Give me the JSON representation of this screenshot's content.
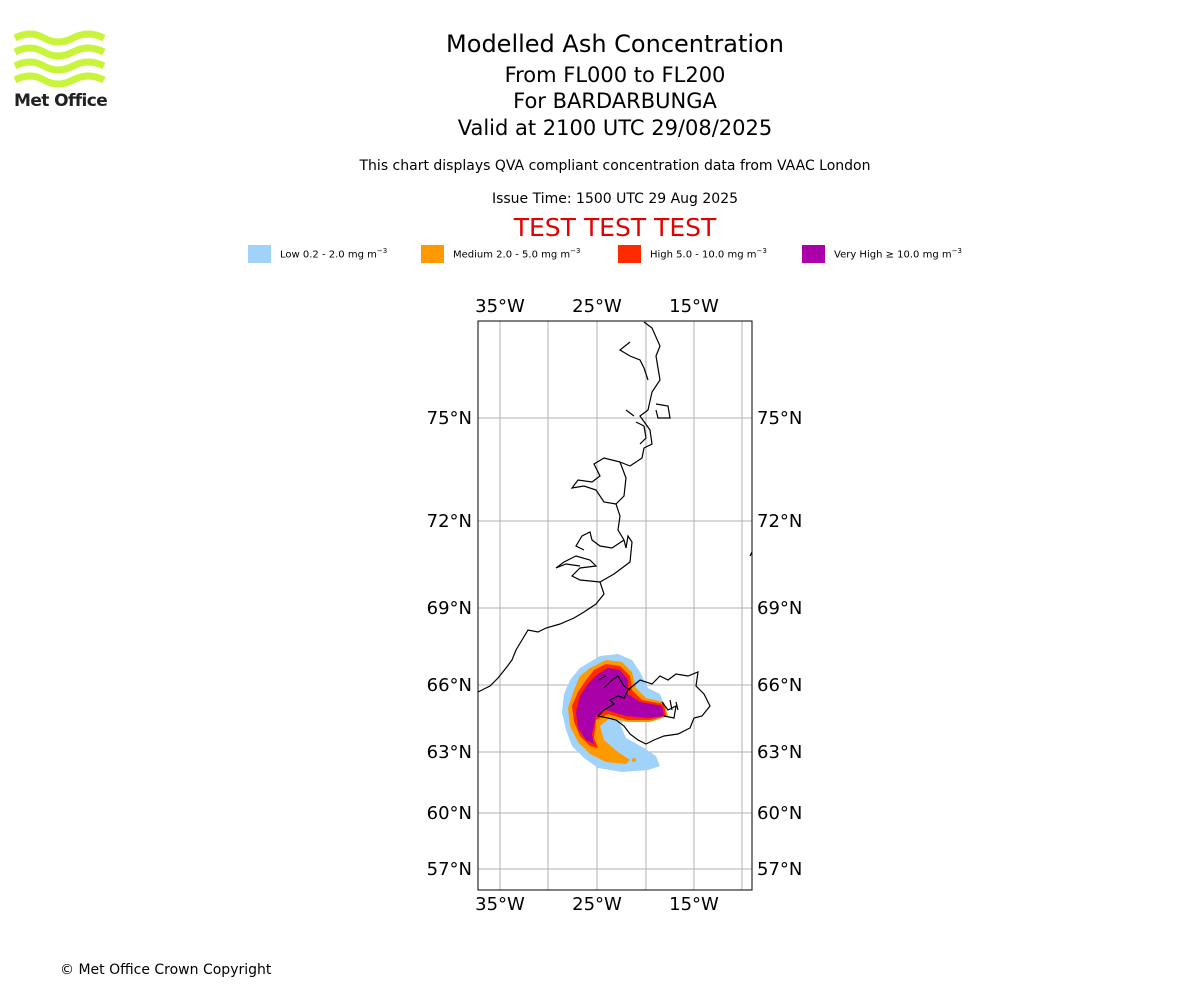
{
  "header": {
    "title": "Modelled Ash Concentration",
    "subtitle_levels": "From FL000 to FL200",
    "subtitle_volcano": "For BARDARBUNGA",
    "subtitle_valid": "Valid at 2100 UTC 29/08/2025",
    "qva_note": "This chart displays QVA compliant concentration data from VAAC London",
    "issue_time": "Issue Time: 1500 UTC 29 Aug 2025",
    "test_banner": "TEST TEST TEST"
  },
  "logo": {
    "text": "Met Office",
    "color": "#c8f53c"
  },
  "legend": [
    {
      "label": "Low 0.2 - 2.0 mg m",
      "unit_exp": "−3",
      "color": "#a0d2fa"
    },
    {
      "label": "Medium 2.0 - 5.0 mg m",
      "unit_exp": "−3",
      "color": "#ff9900"
    },
    {
      "label": "High 5.0 - 10.0 mg m",
      "unit_exp": "−3",
      "color": "#ff2a00"
    },
    {
      "label": "Very High ≥ 10.0 mg m",
      "unit_exp": "−3",
      "color": "#aa00aa"
    }
  ],
  "map": {
    "lon_labels": [
      "35°W",
      "25°W",
      "15°W"
    ],
    "lat_labels": [
      "75°N",
      "72°N",
      "69°N",
      "66°N",
      "63°N",
      "60°N",
      "57°N"
    ],
    "lon_ticks": [
      -35,
      -25,
      -15
    ],
    "lat_ticks": [
      75,
      72,
      69,
      66,
      63,
      60,
      57
    ],
    "gridline_color": "#b0b0b0"
  },
  "footer": {
    "copyright": "© Met Office Crown Copyright"
  }
}
